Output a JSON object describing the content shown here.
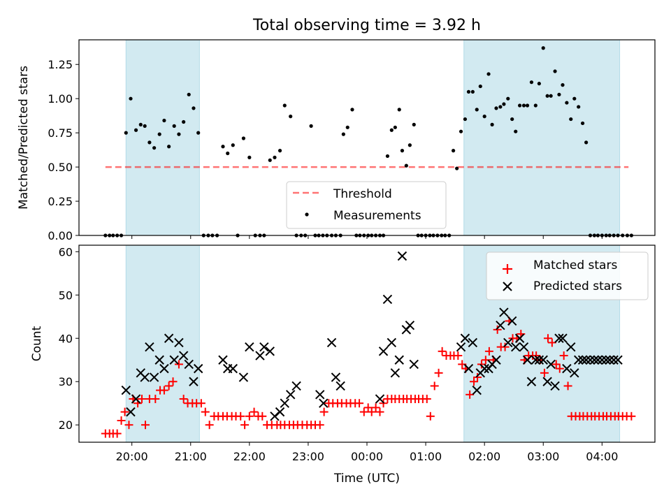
{
  "figure": {
    "title": "Total observing time = 3.92 h"
  },
  "chart_data": [
    {
      "type": "scatter",
      "panel": "top",
      "ylabel": "Matched/Predicted stars",
      "xlabel": "",
      "ylim": [
        0,
        1.43
      ],
      "yticks": [
        0.0,
        0.25,
        0.5,
        0.75,
        1.0,
        1.25
      ],
      "ytick_labels": [
        "0.00",
        "0.25",
        "0.50",
        "0.75",
        "1.00",
        "1.25"
      ],
      "x_unit": "hours since 00:00 UTC",
      "xlim": [
        -4.9,
        4.9
      ],
      "xticks": [
        -4,
        -3,
        -2,
        -1,
        0,
        1,
        2,
        3,
        4
      ],
      "legend": {
        "position": "lower-center",
        "entries": [
          "Threshold",
          "Measurements"
        ]
      },
      "colors": {
        "shade": "#add8e6",
        "threshold": "#ff0000",
        "points": "#000000"
      },
      "shaded_intervals": [
        [
          -4.1,
          -2.85
        ],
        [
          1.65,
          4.3
        ]
      ],
      "threshold": {
        "name": "Threshold",
        "value": 0.5,
        "x": [
          -4.45,
          4.45
        ],
        "style": "dashed"
      },
      "series": [
        {
          "name": "Measurements",
          "x": [
            -4.45,
            -4.38,
            -4.32,
            -4.25,
            -4.18,
            -4.1,
            -4.02,
            -3.93,
            -3.85,
            -3.78,
            -3.7,
            -3.62,
            -3.53,
            -3.45,
            -3.37,
            -3.28,
            -3.2,
            -3.12,
            -3.03,
            -2.95,
            -2.87,
            -2.78,
            -2.7,
            -2.63,
            -2.55,
            -2.45,
            -2.37,
            -2.28,
            -2.2,
            -2.1,
            -2.0,
            -1.9,
            -1.82,
            -1.75,
            -1.65,
            -1.57,
            -1.48,
            -1.4,
            -1.3,
            -1.2,
            -1.12,
            -1.05,
            -0.95,
            -0.88,
            -0.82,
            -0.75,
            -0.68,
            -0.6,
            -0.53,
            -0.45,
            -0.4,
            -0.33,
            -0.25,
            -0.18,
            -0.12,
            -0.05,
            0.02,
            0.08,
            0.15,
            0.22,
            0.28,
            0.35,
            0.42,
            0.48,
            0.55,
            0.6,
            0.67,
            0.73,
            0.8,
            0.87,
            0.93,
            1.0,
            1.07,
            1.13,
            1.2,
            1.27,
            1.33,
            1.4,
            1.47,
            1.53,
            1.6,
            1.67,
            1.73,
            1.8,
            1.87,
            1.93,
            2.0,
            2.07,
            2.13,
            2.2,
            2.27,
            2.33,
            2.4,
            2.47,
            2.53,
            2.6,
            2.67,
            2.73,
            2.8,
            2.87,
            2.93,
            3.0,
            3.07,
            3.13,
            3.2,
            3.27,
            3.33,
            3.4,
            3.47,
            3.53,
            3.6,
            3.67,
            3.73,
            3.8,
            3.87,
            3.93,
            4.0,
            4.07,
            4.13,
            4.2,
            4.27,
            4.35,
            4.43,
            4.5
          ],
          "y": [
            0,
            0,
            0,
            0,
            0,
            0.75,
            1.0,
            0.77,
            0.81,
            0.8,
            0.68,
            0.64,
            0.74,
            0.84,
            0.65,
            0.8,
            0.74,
            0.83,
            1.03,
            0.93,
            0.75,
            0,
            0,
            0,
            0,
            0.65,
            0.6,
            0.66,
            0,
            0.71,
            0.57,
            0,
            0,
            0,
            0.55,
            0.57,
            0.62,
            0.95,
            0.87,
            0,
            0,
            0,
            0.8,
            0,
            0,
            0,
            0,
            0,
            0,
            0,
            0.74,
            0.79,
            0.92,
            0,
            0,
            0,
            0,
            0,
            0,
            0,
            0,
            0.58,
            0.77,
            0.79,
            0.92,
            0.62,
            0.51,
            0.66,
            0.81,
            0,
            0,
            0,
            0,
            0,
            0,
            0,
            0,
            0,
            0.62,
            0.49,
            0.76,
            0.85,
            1.05,
            1.05,
            0.92,
            1.09,
            0.87,
            1.18,
            0.81,
            0.93,
            0.94,
            0.96,
            1.0,
            0.85,
            0.76,
            0.95,
            0.95,
            0.95,
            1.12,
            0.95,
            1.11,
            1.37,
            1.02,
            1.02,
            1.2,
            1.03,
            1.1,
            0.97,
            0.85,
            1.0,
            0.94,
            0.82,
            0.68,
            0,
            0,
            0,
            0,
            0,
            0,
            0,
            0,
            0,
            0,
            0
          ]
        }
      ]
    },
    {
      "type": "scatter",
      "panel": "bottom",
      "ylabel": "Count",
      "xlabel": "Time (UTC)",
      "ylim": [
        16,
        61.5
      ],
      "yticks": [
        20,
        30,
        40,
        50,
        60
      ],
      "ytick_labels": [
        "20",
        "30",
        "40",
        "50",
        "60"
      ],
      "x_unit": "hours since 00:00 UTC",
      "xlim": [
        -4.9,
        4.9
      ],
      "xticks": [
        -4,
        -3,
        -2,
        -1,
        0,
        1,
        2,
        3,
        4
      ],
      "xtick_labels": [
        "20:00",
        "21:00",
        "22:00",
        "23:00",
        "00:00",
        "01:00",
        "02:00",
        "03:00",
        "04:00"
      ],
      "legend": {
        "position": "top-right",
        "entries": [
          "Matched stars",
          "Predicted stars"
        ]
      },
      "colors": {
        "shade": "#add8e6",
        "matched": "#ff0000",
        "predicted": "#000000"
      },
      "shaded_intervals": [
        [
          -4.1,
          -2.85
        ],
        [
          1.65,
          4.3
        ]
      ],
      "series": [
        {
          "name": "Matched stars",
          "marker": "+",
          "x": [
            -4.45,
            -4.38,
            -4.32,
            -4.25,
            -4.18,
            -4.12,
            -4.05,
            -3.98,
            -3.9,
            -3.83,
            -3.77,
            -3.7,
            -3.6,
            -3.52,
            -3.45,
            -3.37,
            -3.3,
            -3.2,
            -3.12,
            -3.05,
            -2.97,
            -2.9,
            -2.82,
            -2.75,
            -2.68,
            -2.6,
            -2.53,
            -2.45,
            -2.38,
            -2.3,
            -2.23,
            -2.15,
            -2.08,
            -2.0,
            -1.92,
            -1.85,
            -1.78,
            -1.7,
            -1.62,
            -1.53,
            -1.47,
            -1.4,
            -1.32,
            -1.25,
            -1.18,
            -1.1,
            -1.02,
            -0.95,
            -0.88,
            -0.8,
            -0.73,
            -0.65,
            -0.58,
            -0.5,
            -0.43,
            -0.35,
            -0.28,
            -0.2,
            -0.13,
            -0.05,
            0.02,
            0.08,
            0.15,
            0.22,
            0.28,
            0.35,
            0.42,
            0.48,
            0.55,
            0.62,
            0.68,
            0.75,
            0.82,
            0.88,
            0.95,
            1.02,
            1.08,
            1.15,
            1.22,
            1.28,
            1.35,
            1.42,
            1.48,
            1.55,
            1.62,
            1.68,
            1.75,
            1.82,
            1.88,
            1.95,
            2.02,
            2.08,
            2.15,
            2.22,
            2.28,
            2.35,
            2.42,
            2.48,
            2.55,
            2.62,
            2.68,
            2.75,
            2.82,
            2.88,
            2.95,
            3.02,
            3.08,
            3.15,
            3.22,
            3.28,
            3.35,
            3.42,
            3.48,
            3.55,
            3.62,
            3.68,
            3.75,
            3.82,
            3.88,
            3.95,
            4.02,
            4.08,
            4.15,
            4.22,
            4.28,
            4.35,
            4.42,
            4.5
          ],
          "y": [
            18,
            18,
            18,
            18,
            21,
            23,
            20,
            26,
            25,
            26,
            20,
            26,
            26,
            28,
            28,
            29,
            30,
            34,
            26,
            25,
            25,
            25,
            25,
            23,
            20,
            22,
            22,
            22,
            22,
            22,
            22,
            22,
            20,
            22,
            23,
            22,
            22,
            20,
            20,
            20,
            20,
            20,
            20,
            20,
            20,
            20,
            20,
            20,
            20,
            20,
            23,
            25,
            25,
            25,
            25,
            25,
            25,
            25,
            25,
            23,
            24,
            23,
            24,
            23,
            25,
            26,
            26,
            26,
            26,
            26,
            26,
            26,
            26,
            26,
            26,
            26,
            22,
            29,
            32,
            37,
            36,
            36,
            36,
            36,
            34,
            33,
            27,
            30,
            31,
            34,
            35,
            37,
            35,
            42,
            38,
            38,
            44,
            40,
            40,
            41,
            35,
            36,
            36,
            36,
            35,
            32,
            40,
            39,
            34,
            33,
            36,
            29,
            22,
            22,
            22,
            22,
            22,
            22,
            22,
            22,
            22,
            22,
            22,
            22,
            22,
            22,
            22,
            22
          ],
          "y_note_skip": 0
        },
        {
          "name": "Predicted stars",
          "marker": "x",
          "x": [
            -4.1,
            -4.02,
            -3.93,
            -3.85,
            -3.78,
            -3.7,
            -3.62,
            -3.53,
            -3.45,
            -3.37,
            -3.28,
            -3.2,
            -3.12,
            -3.03,
            -2.95,
            -2.87,
            -2.45,
            -2.37,
            -2.28,
            -2.1,
            -2.0,
            -1.82,
            -1.75,
            -1.65,
            -1.57,
            -1.48,
            -1.4,
            -1.3,
            -1.2,
            -0.8,
            -0.74,
            -0.6,
            -0.53,
            -0.45,
            0.22,
            0.28,
            0.35,
            0.42,
            0.48,
            0.55,
            0.6,
            0.67,
            0.73,
            0.8,
            1.6,
            1.67,
            1.73,
            1.8,
            1.87,
            1.93,
            2.0,
            2.07,
            2.13,
            2.2,
            2.27,
            2.33,
            2.4,
            2.47,
            2.53,
            2.6,
            2.67,
            2.73,
            2.8,
            2.87,
            2.93,
            3.0,
            3.07,
            3.13,
            3.2,
            3.27,
            3.33,
            3.4,
            3.47,
            3.53,
            3.6,
            3.67,
            3.73,
            3.8,
            3.87,
            3.93,
            4.0,
            4.07,
            4.13,
            4.2,
            4.27
          ],
          "y": [
            28,
            23,
            26,
            32,
            31,
            38,
            31,
            35,
            33,
            40,
            35,
            39,
            36,
            34,
            30,
            33,
            35,
            33,
            33,
            31,
            38,
            36,
            38,
            37,
            22,
            23,
            25,
            27,
            29,
            27,
            25,
            39,
            31,
            29,
            26,
            37,
            49,
            39,
            32,
            35,
            59,
            42,
            43,
            34,
            38,
            40,
            33,
            39,
            28,
            32,
            33,
            33,
            34,
            35,
            43,
            46,
            39,
            44,
            38,
            40,
            38,
            35,
            30,
            35,
            35,
            35,
            30,
            34,
            29,
            40,
            40,
            33,
            38,
            32,
            35,
            35,
            35,
            35,
            35,
            35,
            35,
            35,
            35,
            35,
            35
          ]
        }
      ]
    }
  ]
}
